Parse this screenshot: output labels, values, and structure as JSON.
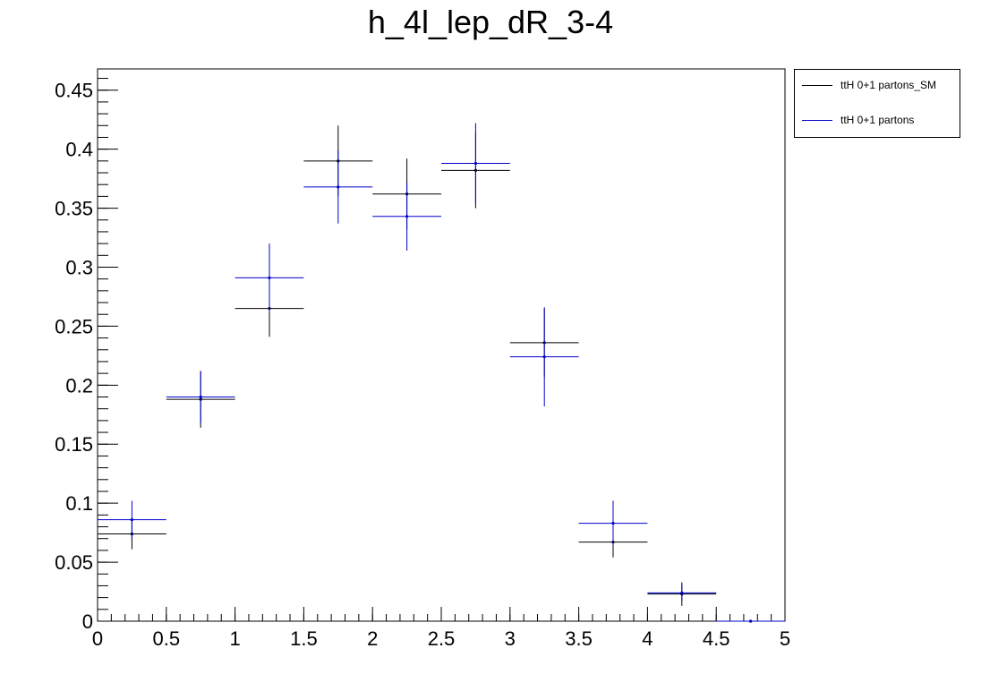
{
  "chart_data": {
    "type": "scatter",
    "title": "h_4l_lep_dR_3-4",
    "xlabel": "",
    "ylabel": "",
    "xlim": [
      0,
      5
    ],
    "ylim": [
      0,
      0.468
    ],
    "x_ticks": [
      "0",
      "0.5",
      "1",
      "1.5",
      "2",
      "2.5",
      "3",
      "3.5",
      "4",
      "4.5",
      "5"
    ],
    "y_ticks": [
      "0",
      "0.05",
      "0.1",
      "0.15",
      "0.2",
      "0.25",
      "0.3",
      "0.35",
      "0.4",
      "0.45"
    ],
    "bin_width": 0.5,
    "legend_position": "top-right, outside plot",
    "series": [
      {
        "name": "ttH 0+1 partons_SM",
        "color": "#000000",
        "x": [
          0.25,
          0.75,
          1.25,
          1.75,
          2.25,
          2.75,
          3.25,
          3.75,
          4.25,
          4.75
        ],
        "values": [
          0.074,
          0.188,
          0.265,
          0.39,
          0.362,
          0.382,
          0.236,
          0.067,
          0.023,
          0.0
        ],
        "errors": [
          0.013,
          0.024,
          0.024,
          0.03,
          0.03,
          0.032,
          0.029,
          0.013,
          0.01,
          0.0
        ]
      },
      {
        "name": "ttH 0+1 partons",
        "color": "#0000cc",
        "x": [
          0.25,
          0.75,
          1.25,
          1.75,
          2.25,
          2.75,
          3.25,
          3.75,
          4.25,
          4.75
        ],
        "values": [
          0.086,
          0.19,
          0.291,
          0.368,
          0.343,
          0.388,
          0.224,
          0.083,
          0.024,
          0.0
        ],
        "errors": [
          0.016,
          0.022,
          0.029,
          0.031,
          0.029,
          0.034,
          0.042,
          0.019,
          0.007,
          0.0
        ]
      }
    ]
  }
}
